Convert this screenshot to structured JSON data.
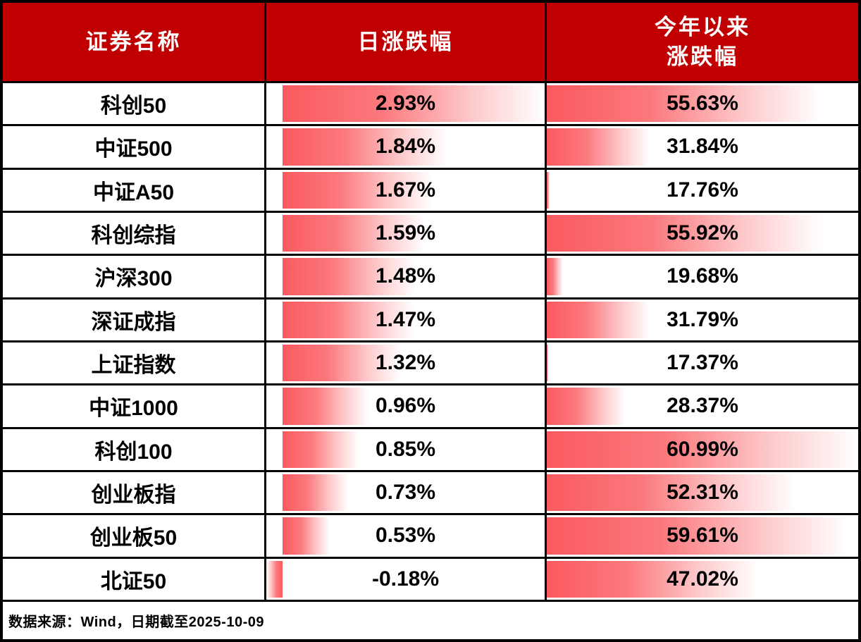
{
  "table": {
    "columns": [
      "证券名称",
      "日涨跌幅",
      "今年以来\n涨跌幅"
    ],
    "rows": [
      {
        "name": "科创50",
        "daily": "2.93%",
        "ytd": "55.63%",
        "daily_v": 2.93,
        "ytd_v": 55.63
      },
      {
        "name": "中证500",
        "daily": "1.84%",
        "ytd": "31.84%",
        "daily_v": 1.84,
        "ytd_v": 31.84
      },
      {
        "name": "中证A50",
        "daily": "1.67%",
        "ytd": "17.76%",
        "daily_v": 1.67,
        "ytd_v": 17.76
      },
      {
        "name": "科创综指",
        "daily": "1.59%",
        "ytd": "55.92%",
        "daily_v": 1.59,
        "ytd_v": 55.92
      },
      {
        "name": "沪深300",
        "daily": "1.48%",
        "ytd": "19.68%",
        "daily_v": 1.48,
        "ytd_v": 19.68
      },
      {
        "name": "深证成指",
        "daily": "1.47%",
        "ytd": "31.79%",
        "daily_v": 1.47,
        "ytd_v": 31.79
      },
      {
        "name": "上证指数",
        "daily": "1.32%",
        "ytd": "17.37%",
        "daily_v": 1.32,
        "ytd_v": 17.37
      },
      {
        "name": "中证1000",
        "daily": "0.96%",
        "ytd": "28.37%",
        "daily_v": 0.96,
        "ytd_v": 28.37
      },
      {
        "name": "科创100",
        "daily": "0.85%",
        "ytd": "60.99%",
        "daily_v": 0.85,
        "ytd_v": 60.99
      },
      {
        "name": "创业板指",
        "daily": "0.73%",
        "ytd": "52.31%",
        "daily_v": 0.73,
        "ytd_v": 52.31
      },
      {
        "name": "创业板50",
        "daily": "0.53%",
        "ytd": "59.61%",
        "daily_v": 0.53,
        "ytd_v": 59.61
      },
      {
        "name": "北证50",
        "daily": "-0.18%",
        "ytd": "47.02%",
        "daily_v": -0.18,
        "ytd_v": 47.02
      }
    ],
    "footer": "数据来源：Wind，日期截至2025-10-09"
  },
  "chart_data": {
    "type": "table",
    "title": "",
    "columns": [
      "证券名称",
      "日涨跌幅",
      "今年以来涨跌幅"
    ],
    "categories": [
      "科创50",
      "中证500",
      "中证A50",
      "科创综指",
      "沪深300",
      "深证成指",
      "上证指数",
      "中证1000",
      "科创100",
      "创业板指",
      "创业板50",
      "北证50"
    ],
    "series": [
      {
        "name": "日涨跌幅 (%)",
        "values": [
          2.93,
          1.84,
          1.67,
          1.59,
          1.48,
          1.47,
          1.32,
          0.96,
          0.85,
          0.73,
          0.53,
          -0.18
        ]
      },
      {
        "name": "今年以来涨跌幅 (%)",
        "values": [
          55.63,
          31.84,
          17.76,
          55.92,
          19.68,
          31.79,
          17.37,
          28.37,
          60.99,
          52.31,
          59.61,
          47.02
        ]
      }
    ],
    "databar_scales": {
      "daily": {
        "min": -0.18,
        "max": 2.93
      },
      "ytd": {
        "min": 17.37,
        "max": 60.99
      }
    },
    "annotations": [
      "数据来源：Wind，日期截至2025-10-09"
    ]
  },
  "colors": {
    "header_bg": "#c00000",
    "header_text": "#ffffff",
    "bar_red": "#fa5a5f",
    "grid": "#000000",
    "value_text": "#000000"
  }
}
